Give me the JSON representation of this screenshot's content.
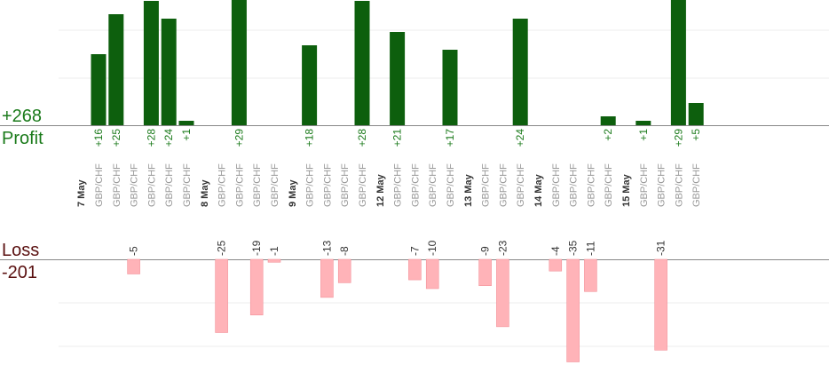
{
  "chart_data": {
    "type": "bar",
    "summary": {
      "profit_total": "+268",
      "profit_label": "Profit",
      "loss_label": "Loss",
      "loss_total": "-201"
    },
    "colors": {
      "profit": "#0d5f0d",
      "loss": "#ffb3b8",
      "profit_text": "#1a7a1a",
      "loss_text": "#333333",
      "date_text": "#333333",
      "pair_text": "#999999"
    },
    "groups": [
      {
        "date": "7 May",
        "trades": [
          {
            "pair": "GBP/CHF",
            "pnl": 16
          },
          {
            "pair": "GBP/CHF",
            "pnl": 25
          },
          {
            "pair": "GBP/CHF",
            "pnl": -5
          },
          {
            "pair": "GBP/CHF",
            "pnl": 28
          },
          {
            "pair": "GBP/CHF",
            "pnl": 24
          },
          {
            "pair": "GBP/CHF",
            "pnl": 1
          }
        ]
      },
      {
        "date": "8 May",
        "trades": [
          {
            "pair": "GBP/CHF",
            "pnl": -25
          },
          {
            "pair": "GBP/CHF",
            "pnl": 29
          },
          {
            "pair": "GBP/CHF",
            "pnl": -19
          },
          {
            "pair": "GBP/CHF",
            "pnl": -1
          }
        ]
      },
      {
        "date": "9 May",
        "trades": [
          {
            "pair": "GBP/CHF",
            "pnl": 18
          },
          {
            "pair": "GBP/CHF",
            "pnl": -13
          },
          {
            "pair": "GBP/CHF",
            "pnl": -8
          },
          {
            "pair": "GBP/CHF",
            "pnl": 28
          }
        ]
      },
      {
        "date": "12 May",
        "trades": [
          {
            "pair": "GBP/CHF",
            "pnl": 21
          },
          {
            "pair": "GBP/CHF",
            "pnl": -7
          },
          {
            "pair": "GBP/CHF",
            "pnl": -10
          },
          {
            "pair": "GBP/CHF",
            "pnl": 17
          }
        ]
      },
      {
        "date": "13 May",
        "trades": [
          {
            "pair": "GBP/CHF",
            "pnl": -9
          },
          {
            "pair": "GBP/CHF",
            "pnl": -23
          },
          {
            "pair": "GBP/CHF",
            "pnl": 24
          }
        ]
      },
      {
        "date": "14 May",
        "trades": [
          {
            "pair": "GBP/CHF",
            "pnl": -4
          },
          {
            "pair": "GBP/CHF",
            "pnl": -35
          },
          {
            "pair": "GBP/CHF",
            "pnl": -11
          },
          {
            "pair": "GBP/CHF",
            "pnl": 2
          }
        ]
      },
      {
        "date": "15 May",
        "trades": [
          {
            "pair": "GBP/CHF",
            "pnl": 1
          },
          {
            "pair": "GBP/CHF",
            "pnl": -31
          },
          {
            "pair": "GBP/CHF",
            "pnl": 29
          },
          {
            "pair": "GBP/CHF",
            "pnl": 5
          }
        ]
      }
    ],
    "grid": true,
    "legend": "none"
  }
}
